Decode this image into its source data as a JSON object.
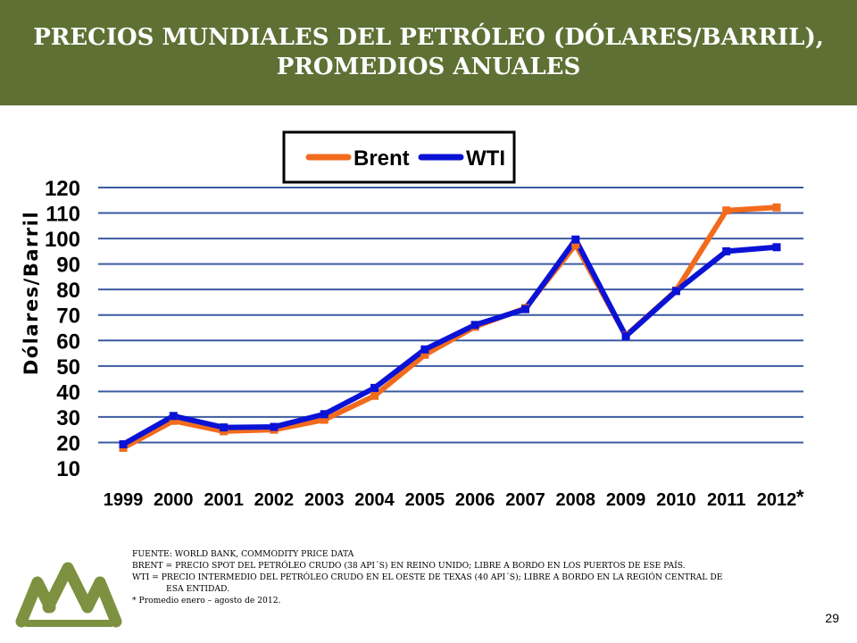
{
  "header": {
    "title_line1": "PRECIOS MUNDIALES DEL PETRÓLEO (DÓLARES/BARRIL),",
    "title_line2": "PROMEDIOS ANUALES"
  },
  "chart_data": {
    "type": "line",
    "title": "",
    "xlabel": "",
    "ylabel": "Dólares/Barril",
    "categories": [
      "1999",
      "2000",
      "2001",
      "2002",
      "2003",
      "2004",
      "2005",
      "2006",
      "2007",
      "2008",
      "2009",
      "2010",
      "2011",
      "2012"
    ],
    "category_note": "*",
    "yticks": [
      10,
      20,
      30,
      40,
      50,
      60,
      70,
      80,
      90,
      100,
      110,
      120
    ],
    "ylim": [
      10,
      120
    ],
    "grid": true,
    "legend_position": "top",
    "series": [
      {
        "name": "Brent",
        "color": "#f26b1d",
        "values": [
          17.9,
          28.5,
          24.4,
          25.0,
          28.9,
          38.3,
          54.4,
          65.4,
          72.7,
          97.6,
          61.9,
          79.6,
          111.0,
          112.2
        ]
      },
      {
        "name": "WTI",
        "color": "#0a12d6",
        "values": [
          19.3,
          30.4,
          25.9,
          26.1,
          31.1,
          41.4,
          56.5,
          66.1,
          72.3,
          99.6,
          61.7,
          79.4,
          95.0,
          96.6
        ]
      }
    ]
  },
  "notes": {
    "line1": "FUENTE: WORLD BANK, COMMODITY PRICE DATA",
    "line2": "BRENT = PRECIO SPOT DEL PETRÓLEO CRUDO (38 API´S) EN REINO UNIDO; LIBRE A BORDO EN LOS PUERTOS DE ESE PAÍS.",
    "line3": "WTI = PRECIO INTERMEDIO DEL PETRÓLEO CRUDO EN EL OESTE DE TEXAS (40 API´S); LIBRE A BORDO EN LA REGIÓN CENTRAL DE",
    "line4": "ESA      ENTIDAD.",
    "line5": "* Promedio enero – agosto  de 2012."
  },
  "footer": {
    "page_number": "29"
  },
  "colors": {
    "banner": "#5f7034",
    "grid": "#3b5aa0",
    "logo": "#7d9140"
  },
  "icons": {
    "logo": "mountains-logo-icon"
  }
}
